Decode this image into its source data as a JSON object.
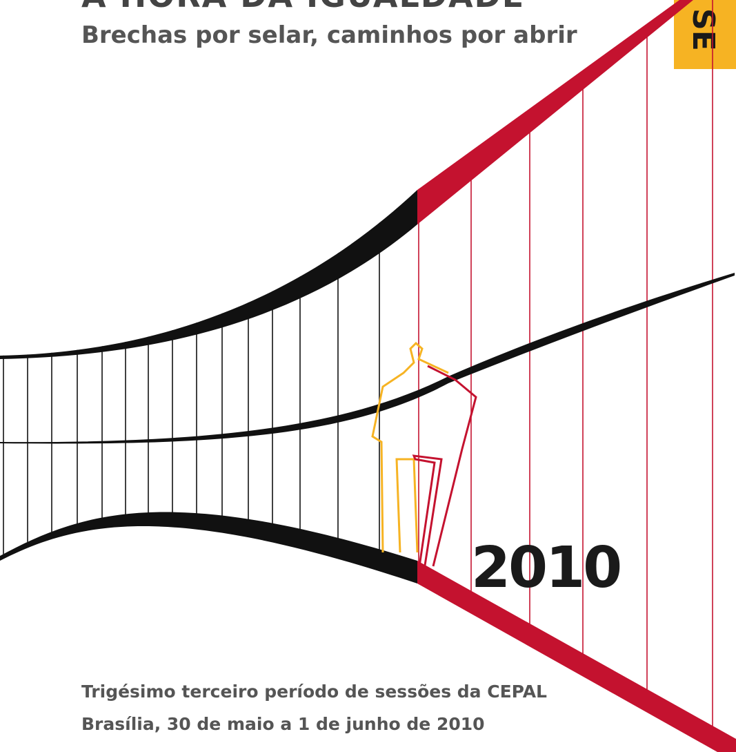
{
  "header": {
    "title": "A HORA DA IGUALDADE",
    "subtitle": "Brechas por selar, caminhos por abrir"
  },
  "tab": {
    "label": "SE"
  },
  "year": "2010",
  "footer": {
    "line1": "Trigésimo terceiro período de sessões da CEPAL",
    "line2": "Brasília, 30 de maio a 1 de junho de 2010"
  }
}
